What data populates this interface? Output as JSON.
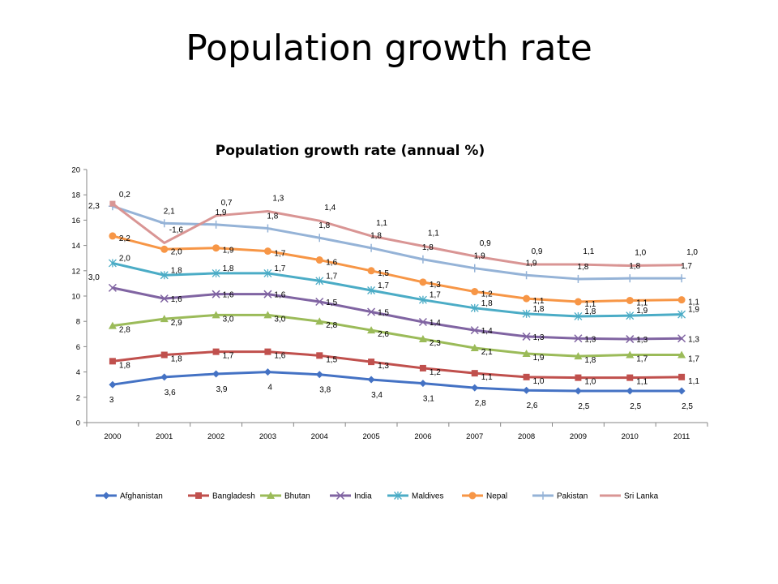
{
  "slide": {
    "title": "Population growth rate"
  },
  "chart_data": {
    "type": "line",
    "title": "Population growth rate (annual %)",
    "xlabel": "",
    "ylabel": "",
    "categories": [
      "2000",
      "2001",
      "2002",
      "2003",
      "2004",
      "2005",
      "2006",
      "2007",
      "2008",
      "2009",
      "2010",
      "2011"
    ],
    "ylim": [
      0,
      20
    ],
    "yticks": [
      0,
      2,
      4,
      6,
      8,
      10,
      12,
      14,
      16,
      18,
      20
    ],
    "ytick_labels": [
      "0",
      "2",
      "4",
      "6",
      "8",
      "10",
      "12",
      "14",
      "16",
      "18",
      "20"
    ],
    "grid": false,
    "legend_position": "bottom",
    "series": [
      {
        "name": "Afghanistan",
        "color": "#4472C4",
        "marker": "diamond",
        "values": [
          3.0,
          3.6,
          3.85,
          4.0,
          3.8,
          3.4,
          3.1,
          2.75,
          2.55,
          2.5,
          2.5,
          2.5
        ],
        "labels": [
          "3",
          "3,6",
          "3,9",
          "4",
          "3,8",
          "3,4",
          "3,1",
          "2,8",
          "2,6",
          "2,5",
          "2,5",
          "2,5"
        ]
      },
      {
        "name": "Bangladesh",
        "color": "#C0504D",
        "marker": "square",
        "values": [
          4.85,
          5.35,
          5.6,
          5.6,
          5.3,
          4.8,
          4.3,
          3.9,
          3.6,
          3.55,
          3.55,
          3.6
        ],
        "labels": [
          "1,8",
          "1,8",
          "1,7",
          "1,6",
          "1,5",
          "1,3",
          "1,2",
          "1,1",
          "1,0",
          "1,0",
          "1,1",
          "1,1"
        ]
      },
      {
        "name": "Bhutan",
        "color": "#9BBB59",
        "marker": "triangle",
        "values": [
          7.65,
          8.2,
          8.5,
          8.5,
          8.0,
          7.3,
          6.6,
          5.9,
          5.45,
          5.25,
          5.35,
          5.35
        ],
        "labels": [
          "2,8",
          "2,9",
          "3,0",
          "3,0",
          "2,8",
          "2,6",
          "2,3",
          "2,1",
          "1,9",
          "1,8",
          "1,7",
          "1,7"
        ]
      },
      {
        "name": "India",
        "color": "#8064A2",
        "marker": "x",
        "values": [
          10.65,
          9.8,
          10.15,
          10.15,
          9.55,
          8.75,
          7.95,
          7.3,
          6.8,
          6.65,
          6.6,
          6.65
        ],
        "labels": [
          "3,0",
          "1,6",
          "1,6",
          "1,6",
          "1,5",
          "1,5",
          "1,4",
          "1,4",
          "1,3",
          "1,3",
          "1,3",
          "1,3"
        ]
      },
      {
        "name": "Maldives",
        "color": "#4BACC6",
        "marker": "asterisk",
        "values": [
          12.6,
          11.65,
          11.8,
          11.8,
          11.2,
          10.45,
          9.7,
          9.05,
          8.6,
          8.4,
          8.45,
          8.55
        ],
        "labels": [
          "2,0",
          "1,8",
          "1,8",
          "1,7",
          "1,7",
          "1,7",
          "1,7",
          "1,8",
          "1,8",
          "1,8",
          "1,9",
          "1,9"
        ]
      },
      {
        "name": "Nepal",
        "color": "#F79646",
        "marker": "circle",
        "values": [
          14.75,
          13.7,
          13.8,
          13.55,
          12.85,
          12.0,
          11.1,
          10.35,
          9.8,
          9.55,
          9.65,
          9.7
        ],
        "labels": [
          "2,2",
          "2,0",
          "1,9",
          "1,7",
          "1,6",
          "1,5",
          "1,3",
          "1,2",
          "1,1",
          "1,1",
          "1,1",
          "1,1"
        ]
      },
      {
        "name": "Pakistan",
        "color": "#95B3D7",
        "marker": "plus",
        "values": [
          17.1,
          15.75,
          15.65,
          15.35,
          14.6,
          13.8,
          12.9,
          12.2,
          11.65,
          11.35,
          11.4,
          11.4
        ],
        "labels": [
          "2,3",
          "2,1",
          "1,9",
          "1,8",
          "1,8",
          "1,8",
          "1,8",
          "1,9",
          "1,9",
          "1,8",
          "1,8",
          "1,7"
        ]
      },
      {
        "name": "Sri Lanka",
        "color": "#D99594",
        "marker": "none",
        "values": [
          17.3,
          14.2,
          16.35,
          16.7,
          15.95,
          14.75,
          13.95,
          13.15,
          12.5,
          12.5,
          12.4,
          12.45
        ],
        "labels": [
          "0,2",
          "-1,6",
          "0,7",
          "1,3",
          "1,4",
          "1,1",
          "1,1",
          "0,9",
          "0,9",
          "1,1",
          "1,0",
          "1,0"
        ]
      }
    ]
  }
}
